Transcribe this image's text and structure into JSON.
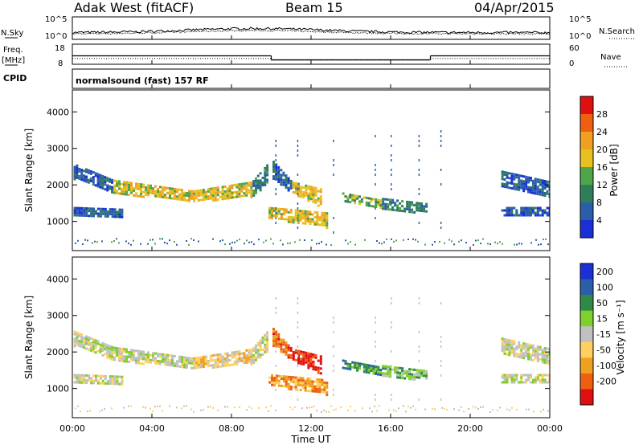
{
  "header": {
    "station": "Adak West (fitACF)",
    "beam": "Beam 15",
    "date": "04/Apr/2015"
  },
  "colors": {
    "power_scale": [
      "#1a2fd6",
      "#2a5ea8",
      "#2f7e5a",
      "#4ea54a",
      "#e8c020",
      "#f0a020",
      "#ee6010",
      "#e11010"
    ],
    "velocity_scale": [
      "#1a2fd6",
      "#2a5ea8",
      "#2f8a4a",
      "#7ed02a",
      "#c0c0c0",
      "#ffd060",
      "#f0a020",
      "#ee6010",
      "#e11010"
    ],
    "ground_scatter": "#c0c0c0"
  },
  "chart_data": [
    {
      "type": "line",
      "panel": "noise",
      "left_label": "N.Sky",
      "right_label": "N.Search",
      "left_ticks": [
        "10^5",
        "10^0"
      ],
      "right_ticks": [
        "10^5",
        "10^0"
      ]
    },
    {
      "type": "line",
      "panel": "frequency",
      "left_label": "Freq.",
      "left_unit": "[MHz]",
      "right_label": "Nave",
      "left_ticks": [
        "18",
        "8"
      ],
      "right_ticks": [
        "60",
        "0"
      ],
      "freq_segments": [
        {
          "x": [
            0,
            10
          ],
          "y": 12.2
        },
        {
          "x": [
            10,
            18
          ],
          "y": 10.2
        },
        {
          "x": [
            18,
            24
          ],
          "y": 12.2
        }
      ],
      "nave_segments": [
        {
          "x": [
            0,
            10
          ],
          "y": 17
        },
        {
          "x": [
            10,
            18
          ],
          "y": 12
        },
        {
          "x": [
            18,
            24
          ],
          "y": 17
        }
      ],
      "cpid_label": "CPID",
      "cpid_text": "normalsound (fast) 157 RF"
    },
    {
      "type": "heatmap",
      "panel": "power",
      "ylabel": "Slant Range [km]",
      "yticks": [
        "1000",
        "2000",
        "3000",
        "4000"
      ],
      "ylim": [
        200,
        4600
      ],
      "colorbar_label": "Power [dB]",
      "colorbar_ticks": [
        "4",
        "8",
        "12",
        "16",
        "20",
        "24",
        "28"
      ],
      "bands": [
        {
          "x": [
            0.0,
            2.0
          ],
          "r0": [
            2600,
            2150
          ],
          "r1": [
            2200,
            1800
          ],
          "lv": 1
        },
        {
          "x": [
            2.0,
            6.0
          ],
          "r0": [
            2150,
            1850
          ],
          "r1": [
            1800,
            1550
          ],
          "lv": 4
        },
        {
          "x": [
            6.0,
            9.0
          ],
          "r0": [
            1850,
            2100
          ],
          "r1": [
            1550,
            1700
          ],
          "lv": 4
        },
        {
          "x": [
            9.0,
            9.8
          ],
          "r0": [
            2100,
            2600
          ],
          "r1": [
            1700,
            2050
          ],
          "lv": 2
        },
        {
          "x": [
            10.0,
            11.0
          ],
          "r0": [
            2700,
            2100
          ],
          "r1": [
            2200,
            1800
          ],
          "lv": 1
        },
        {
          "x": [
            11.0,
            12.5
          ],
          "r0": [
            2100,
            1900
          ],
          "r1": [
            1800,
            1400
          ],
          "lv": 4
        },
        {
          "x": [
            9.8,
            12.8
          ],
          "r0": [
            1400,
            1250
          ],
          "r1": [
            1100,
            850
          ],
          "lv": 4
        },
        {
          "x": [
            13.5,
            15.5
          ],
          "r0": [
            1800,
            1600
          ],
          "r1": [
            1550,
            1350
          ],
          "lv": 3
        },
        {
          "x": [
            15.5,
            17.8
          ],
          "r0": [
            1650,
            1500
          ],
          "r1": [
            1350,
            1250
          ],
          "lv": 2
        },
        {
          "x": [
            0.0,
            2.5
          ],
          "r0": [
            1400,
            1350
          ],
          "r1": [
            1200,
            1150
          ],
          "lv": 1
        },
        {
          "x": [
            21.5,
            24.0
          ],
          "r0": [
            2400,
            2100
          ],
          "r1": [
            2000,
            1700
          ],
          "lv": 1
        },
        {
          "x": [
            21.5,
            24.0
          ],
          "r0": [
            1400,
            1400
          ],
          "r1": [
            1150,
            1150
          ],
          "lv": 1
        }
      ]
    },
    {
      "type": "heatmap",
      "panel": "velocity",
      "ylabel": "Slant Range [km]",
      "yticks": [
        "1000",
        "2000",
        "3000",
        "4000"
      ],
      "ylim": [
        200,
        4600
      ],
      "colorbar_label": "Velocity [m s⁻¹]",
      "colorbar_ticks": [
        "200",
        "100",
        "50",
        "15",
        "-15",
        "-50",
        "-100",
        "-200"
      ],
      "bands": [
        {
          "x": [
            0.0,
            2.0
          ],
          "r0": [
            2600,
            2150
          ],
          "r1": [
            2200,
            1800
          ],
          "lv": 4
        },
        {
          "x": [
            2.0,
            6.0
          ],
          "r0": [
            2150,
            1850
          ],
          "r1": [
            1800,
            1550
          ],
          "lv": 4
        },
        {
          "x": [
            6.0,
            9.0
          ],
          "r0": [
            1850,
            2100
          ],
          "r1": [
            1550,
            1700
          ],
          "lv": 5
        },
        {
          "x": [
            9.0,
            9.8
          ],
          "r0": [
            2100,
            2600
          ],
          "r1": [
            1700,
            2050
          ],
          "lv": 4
        },
        {
          "x": [
            10.0,
            11.0
          ],
          "r0": [
            2700,
            2100
          ],
          "r1": [
            2200,
            1800
          ],
          "lv": 7
        },
        {
          "x": [
            11.0,
            12.5
          ],
          "r0": [
            2100,
            1900
          ],
          "r1": [
            1800,
            1400
          ],
          "lv": 8
        },
        {
          "x": [
            9.8,
            12.8
          ],
          "r0": [
            1400,
            1250
          ],
          "r1": [
            1100,
            850
          ],
          "lv": 6
        },
        {
          "x": [
            13.5,
            15.5
          ],
          "r0": [
            1800,
            1600
          ],
          "r1": [
            1550,
            1350
          ],
          "lv": 2
        },
        {
          "x": [
            15.5,
            17.8
          ],
          "r0": [
            1650,
            1500
          ],
          "r1": [
            1350,
            1250
          ],
          "lv": 3
        },
        {
          "x": [
            0.0,
            2.5
          ],
          "r0": [
            1400,
            1350
          ],
          "r1": [
            1200,
            1150
          ],
          "lv": 4
        },
        {
          "x": [
            21.5,
            24.0
          ],
          "r0": [
            2400,
            2100
          ],
          "r1": [
            2000,
            1700
          ],
          "lv": 4
        },
        {
          "x": [
            21.5,
            24.0
          ],
          "r0": [
            1400,
            1400
          ],
          "r1": [
            1150,
            1150
          ],
          "lv": 4
        }
      ]
    }
  ],
  "x_axis": {
    "xlim": [
      0,
      24
    ],
    "tick_values": [
      0,
      4,
      8,
      12,
      16,
      20,
      24
    ],
    "tick_labels": [
      "00:00",
      "04:00",
      "08:00",
      "12:00",
      "16:00",
      "20:00",
      "00:00"
    ],
    "label": "Time UT"
  }
}
